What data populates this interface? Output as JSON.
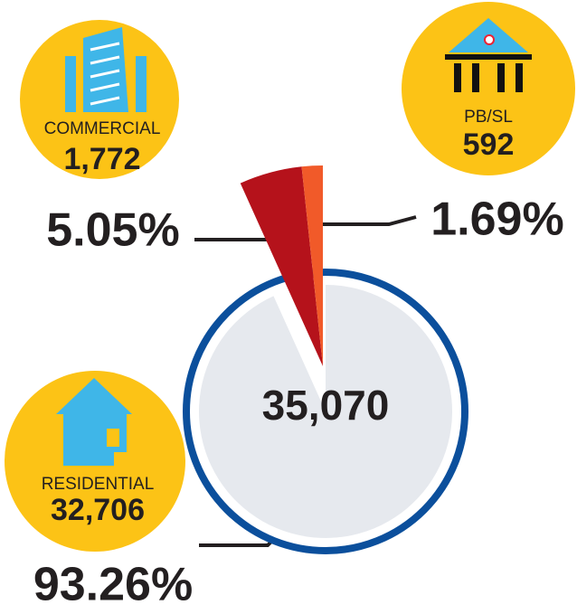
{
  "chart_data": {
    "type": "pie",
    "total": "35,070",
    "categories": [
      "RESIDENTIAL",
      "COMMERCIAL",
      "PB/SL"
    ],
    "values": [
      32706,
      1772,
      592
    ],
    "value_labels": [
      "32,706",
      "1,772",
      "592"
    ],
    "percent_labels": [
      "93.26%",
      "5.05%",
      "1.69%"
    ],
    "colors": [
      "#e6e9ee",
      "#b5121b",
      "#f15a29"
    ],
    "ring_color": "#0b4f9c"
  }
}
